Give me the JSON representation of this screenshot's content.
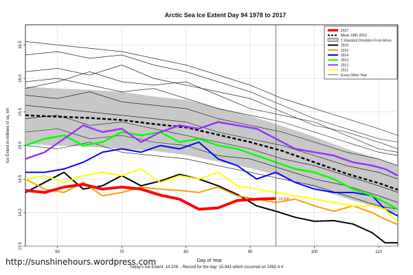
{
  "chart_data": {
    "type": "line",
    "title": "Arctic Sea Ice Extent Day 94 1978 to 2017",
    "xlabel": "Day of Year",
    "ylabel": "Ice Extent in millions of sq. km",
    "xlim": [
      55,
      113
    ],
    "ylim": [
      13.5,
      16.8
    ],
    "xticks": [
      60,
      70,
      80,
      90,
      100,
      110
    ],
    "yticks": [
      13.5,
      14.0,
      14.5,
      15.0,
      15.5,
      16.0,
      16.5
    ],
    "grid": true,
    "legend_position": "top-right",
    "current_day_marker": 94,
    "annotation": {
      "text": "14.208",
      "x": 94,
      "y": 14.208
    },
    "band": {
      "name": "1 Standard Deviation From Mean",
      "x": [
        55,
        60,
        65,
        70,
        75,
        80,
        85,
        90,
        95,
        100,
        105,
        110,
        113
      ],
      "upper": [
        15.88,
        15.85,
        15.83,
        15.8,
        15.73,
        15.68,
        15.56,
        15.44,
        15.29,
        15.13,
        14.95,
        14.8,
        14.7
      ],
      "lower": [
        15.02,
        15.0,
        14.98,
        14.95,
        14.92,
        14.86,
        14.76,
        14.66,
        14.54,
        14.37,
        14.21,
        14.07,
        13.98
      ]
    },
    "series": [
      {
        "name": "2017",
        "color": "#ff0000",
        "width": 4,
        "x": [
          55,
          58,
          61,
          64,
          67,
          70,
          73,
          76,
          79,
          82,
          85,
          88,
          91,
          94
        ],
        "y": [
          14.33,
          14.3,
          14.38,
          14.42,
          14.35,
          14.38,
          14.35,
          14.26,
          14.2,
          14.05,
          14.07,
          14.18,
          14.2,
          14.21
        ]
      },
      {
        "name": "Mean 1981-2010",
        "color": "#000000",
        "width": 2.5,
        "dash": "5,3",
        "x": [
          55,
          60,
          65,
          70,
          75,
          80,
          85,
          90,
          95,
          100,
          105,
          110,
          113
        ],
        "y": [
          15.45,
          15.43,
          15.41,
          15.38,
          15.32,
          15.27,
          15.16,
          15.05,
          14.92,
          14.75,
          14.58,
          14.44,
          14.34
        ]
      },
      {
        "name": "2016",
        "color": "#000000",
        "width": 2,
        "x": [
          55,
          58,
          61,
          64,
          67,
          70,
          73,
          76,
          79,
          82,
          85,
          88,
          91,
          94,
          97,
          100,
          103,
          106,
          109,
          111,
          113
        ],
        "y": [
          14.3,
          14.45,
          14.6,
          14.35,
          14.4,
          14.55,
          14.4,
          14.47,
          14.57,
          14.5,
          14.4,
          14.27,
          14.1,
          14.02,
          13.93,
          13.87,
          13.88,
          13.83,
          13.7,
          13.55,
          13.55
        ]
      },
      {
        "name": "2015",
        "color": "#ff9900",
        "width": 2,
        "x": [
          55,
          58,
          61,
          64,
          67,
          70,
          73,
          76,
          79,
          82,
          85,
          88,
          91,
          94,
          97,
          100,
          103,
          106,
          109,
          111,
          113
        ],
        "y": [
          14.5,
          14.35,
          14.3,
          14.45,
          14.25,
          14.3,
          14.38,
          14.35,
          14.33,
          14.3,
          14.38,
          14.25,
          14.2,
          14.15,
          14.2,
          14.1,
          14.02,
          14.1,
          14.0,
          13.9,
          13.82
        ]
      },
      {
        "name": "2014",
        "color": "#0000ff",
        "width": 2,
        "x": [
          55,
          58,
          61,
          64,
          67,
          70,
          73,
          76,
          79,
          82,
          85,
          88,
          91,
          94,
          97,
          100,
          103,
          106,
          109,
          111,
          113
        ],
        "y": [
          14.6,
          14.6,
          14.65,
          14.75,
          14.9,
          14.95,
          14.9,
          15.0,
          14.95,
          15.05,
          14.8,
          14.7,
          14.5,
          14.6,
          14.45,
          14.35,
          14.3,
          14.3,
          14.25,
          14.05,
          13.95
        ]
      },
      {
        "name": "2013",
        "color": "#00ff00",
        "width": 2.5,
        "x": [
          55,
          58,
          61,
          64,
          67,
          70,
          73,
          76,
          79,
          82,
          85,
          88,
          91,
          94,
          97,
          100,
          103,
          106,
          109,
          111,
          113
        ],
        "y": [
          15.0,
          15.1,
          15.15,
          15.0,
          15.05,
          15.2,
          15.15,
          15.2,
          15.05,
          15.1,
          15.0,
          14.95,
          14.85,
          14.75,
          14.65,
          14.6,
          14.5,
          14.35,
          14.25,
          14.15,
          14.05
        ]
      },
      {
        "name": "2012",
        "color": "#9933ff",
        "width": 2.5,
        "x": [
          55,
          58,
          61,
          64,
          67,
          70,
          73,
          76,
          79,
          82,
          85,
          88,
          91,
          94,
          97,
          100,
          103,
          106,
          109,
          111,
          113
        ],
        "y": [
          14.8,
          14.9,
          15.1,
          15.3,
          15.2,
          15.25,
          15.05,
          15.2,
          15.3,
          15.25,
          15.35,
          15.3,
          15.25,
          15.1,
          14.95,
          14.9,
          14.85,
          14.75,
          14.7,
          14.65,
          14.55
        ]
      },
      {
        "name": "2011",
        "color": "#ffff00",
        "width": 2,
        "x": [
          55,
          58,
          61,
          64,
          67,
          70,
          73,
          76,
          79,
          82,
          85,
          88,
          91,
          94,
          97,
          100,
          103,
          106,
          109,
          111,
          113
        ],
        "y": [
          14.5,
          14.55,
          14.45,
          14.55,
          14.6,
          14.55,
          14.65,
          14.45,
          14.55,
          14.5,
          14.6,
          14.4,
          14.35,
          14.3,
          14.25,
          14.2,
          14.15,
          14.1,
          14.1,
          14.05,
          13.85
        ]
      },
      {
        "name": "Every Other Year",
        "color": "#000000",
        "width": 0.6,
        "group": "other",
        "x": [
          55,
          60,
          65,
          70,
          75,
          80,
          85,
          90,
          95,
          100,
          105,
          110,
          113
        ],
        "y": [
          16.35,
          16.4,
          16.3,
          16.35,
          16.2,
          16.1,
          15.95,
          15.8,
          15.6,
          15.4,
          15.25,
          15.1,
          15.05
        ]
      },
      {
        "name": "",
        "color": "#000000",
        "width": 0.6,
        "group": "other",
        "x": [
          55,
          60,
          65,
          70,
          75,
          80,
          85,
          90,
          95,
          100,
          105,
          110,
          113
        ],
        "y": [
          16.1,
          16.15,
          16.05,
          16.2,
          16.0,
          15.9,
          15.8,
          15.7,
          15.5,
          15.3,
          15.2,
          15.05,
          14.95
        ]
      },
      {
        "name": "",
        "color": "#000000",
        "width": 0.6,
        "group": "other",
        "x": [
          55,
          60,
          65,
          70,
          75,
          80,
          85,
          90,
          95,
          100,
          105,
          110,
          113
        ],
        "y": [
          15.95,
          16.0,
          15.9,
          15.8,
          15.85,
          15.7,
          15.55,
          15.45,
          15.35,
          15.2,
          15.05,
          14.9,
          14.85
        ]
      },
      {
        "name": "",
        "color": "#000000",
        "width": 0.6,
        "group": "other",
        "x": [
          55,
          60,
          65,
          70,
          75,
          80,
          85,
          90,
          95,
          100,
          105,
          110,
          113
        ],
        "y": [
          15.75,
          15.7,
          15.8,
          15.65,
          15.6,
          15.55,
          15.4,
          15.3,
          15.2,
          15.05,
          14.9,
          14.8,
          14.7
        ]
      },
      {
        "name": "",
        "color": "#000000",
        "width": 0.6,
        "group": "other",
        "x": [
          55,
          60,
          65,
          70,
          75,
          80,
          85,
          90,
          95,
          100,
          105,
          110,
          113
        ],
        "y": [
          15.6,
          15.55,
          15.5,
          15.45,
          15.4,
          15.35,
          15.2,
          15.1,
          15.0,
          14.85,
          14.7,
          14.6,
          14.5
        ]
      },
      {
        "name": "",
        "color": "#000000",
        "width": 0.6,
        "group": "other",
        "x": [
          55,
          60,
          65,
          70,
          75,
          80,
          85,
          90,
          95,
          100,
          105,
          110,
          113
        ],
        "y": [
          15.4,
          15.45,
          15.3,
          15.35,
          15.25,
          15.15,
          15.05,
          14.95,
          14.8,
          14.7,
          14.55,
          14.4,
          14.3
        ]
      },
      {
        "name": "",
        "color": "#000000",
        "width": 0.6,
        "group": "other",
        "x": [
          55,
          60,
          65,
          70,
          75,
          80,
          85,
          90,
          95,
          100,
          105,
          110,
          113
        ],
        "y": [
          15.2,
          15.25,
          15.1,
          15.15,
          15.05,
          15.0,
          14.85,
          14.8,
          14.65,
          14.5,
          14.4,
          14.25,
          14.15
        ]
      },
      {
        "name": "",
        "color": "#000000",
        "width": 0.6,
        "group": "other",
        "x": [
          55,
          60,
          65,
          70,
          75,
          80,
          85,
          90,
          95,
          100,
          105,
          110,
          113
        ],
        "y": [
          15.0,
          14.95,
          15.05,
          14.9,
          14.85,
          14.8,
          14.7,
          14.6,
          14.5,
          14.4,
          14.25,
          14.1,
          14.05
        ]
      },
      {
        "name": "",
        "color": "#000000",
        "width": 0.6,
        "group": "other",
        "x": [
          55,
          60,
          65,
          70,
          75,
          80,
          85,
          90,
          95,
          100,
          105,
          110,
          113
        ],
        "y": [
          16.55,
          16.5,
          16.45,
          16.4,
          16.3,
          16.2,
          16.05,
          15.9,
          15.7,
          15.55,
          15.4,
          15.25,
          15.15
        ]
      },
      {
        "name": "",
        "color": "#000000",
        "width": 0.6,
        "group": "other",
        "x": [
          55,
          60,
          65,
          70,
          75,
          80,
          85,
          90,
          95,
          100,
          105,
          110,
          113
        ],
        "y": [
          15.85,
          15.95,
          16.1,
          15.95,
          15.9,
          15.95,
          15.75,
          15.55,
          15.45,
          15.35,
          15.15,
          14.95,
          14.9
        ]
      }
    ]
  },
  "footer": {
    "url": "http://sunshinehours.wordpress.com",
    "note": "Today's Ice Extent: 14.208 .. Record for the day: 15.943 which occurred on 1982 4 4"
  }
}
